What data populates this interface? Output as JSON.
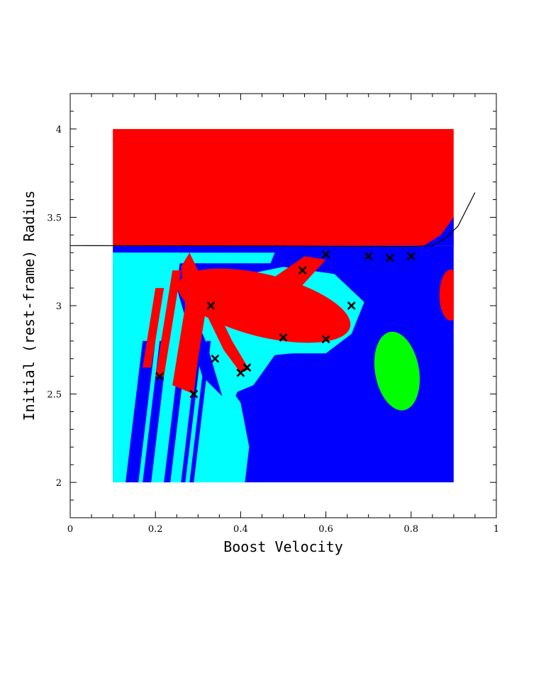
{
  "chart_data": {
    "type": "heatmap",
    "title": "",
    "xlabel": "Boost Velocity",
    "ylabel": "Initial (rest-frame) Radius",
    "xlim": [
      0,
      1
    ],
    "ylim": [
      1.8,
      4.2
    ],
    "x_ticks": [
      "0",
      "0.2",
      "0.4",
      "0.6",
      "0.8",
      "1"
    ],
    "y_ticks": [
      "2",
      "2.5",
      "3",
      "3.5",
      "4"
    ],
    "grid": false,
    "legend": "none",
    "colors": {
      "red": "#ff0000",
      "blue": "#0000ff",
      "cyan": "#00ffff",
      "green": "#00ff00",
      "line": "#000000",
      "marker": "#000000"
    },
    "region_extent": {
      "x": [
        0.1,
        0.9
      ],
      "y": [
        2.0,
        4.0
      ]
    },
    "regions": [
      {
        "color": "red",
        "description_shape": "upper band",
        "x": [
          0.1,
          0.9
        ],
        "y": [
          3.34,
          4.0
        ]
      },
      {
        "color": "red",
        "description_shape": "oval",
        "center": [
          0.43,
          2.98
        ],
        "radius_x": [
          0.16,
          0.32
        ]
      },
      {
        "color": "green",
        "description_shape": "oval",
        "center": [
          0.77,
          2.62
        ]
      },
      {
        "color": "red",
        "description_shape": "oval",
        "center": [
          0.89,
          3.05
        ]
      }
    ],
    "boundary_curve": [
      [
        0.0,
        3.34
      ],
      [
        0.5,
        3.338
      ],
      [
        0.8,
        3.335
      ],
      [
        0.85,
        3.34
      ],
      [
        0.88,
        3.38
      ],
      [
        0.91,
        3.45
      ],
      [
        0.95,
        3.64
      ]
    ],
    "markers": [
      [
        0.21,
        2.6
      ],
      [
        0.29,
        2.5
      ],
      [
        0.33,
        3.0
      ],
      [
        0.34,
        2.7
      ],
      [
        0.4,
        2.62
      ],
      [
        0.415,
        2.65
      ],
      [
        0.5,
        2.82
      ],
      [
        0.545,
        3.2
      ],
      [
        0.6,
        3.29
      ],
      [
        0.6,
        2.81
      ],
      [
        0.66,
        3.0
      ],
      [
        0.7,
        3.28
      ],
      [
        0.75,
        3.27
      ],
      [
        0.8,
        3.28
      ]
    ]
  }
}
